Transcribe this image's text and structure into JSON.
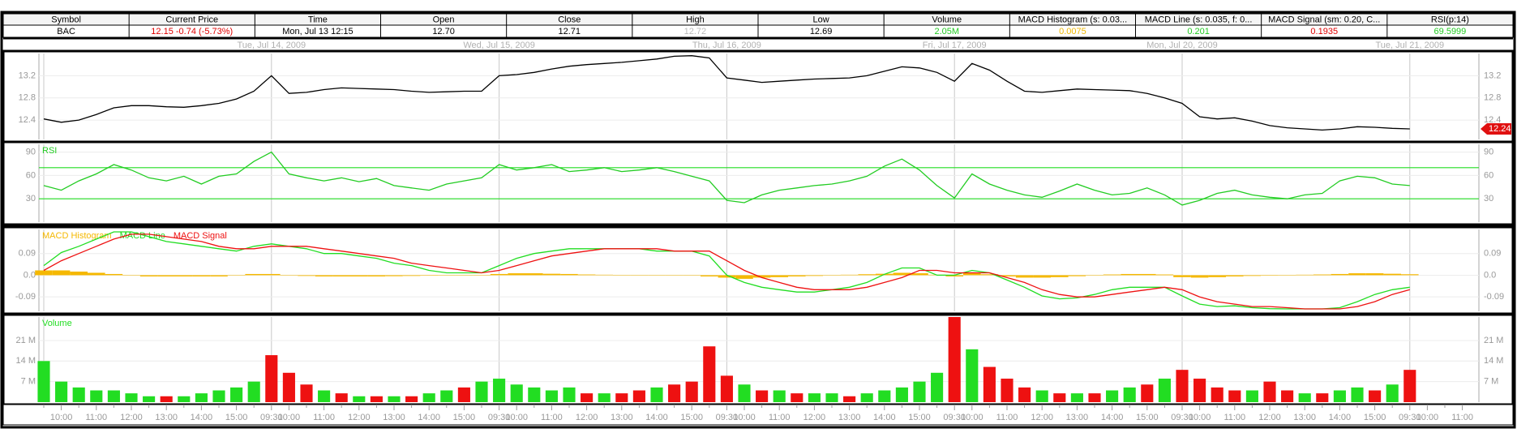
{
  "header_table": {
    "columns": [
      "Symbol",
      "Current Price",
      "Time",
      "Open",
      "Close",
      "High",
      "Low",
      "Volume",
      "MACD Histogram (s: 0.03...",
      "MACD Line (s: 0.035, f: 0...",
      "MACD Signal (sm: 0.20, C...",
      "RSI(p:14)"
    ],
    "cells": [
      {
        "text": "BAC",
        "color": "#000000"
      },
      {
        "text": "12.15  -0.74 (-5.73%)",
        "color": "#e00000"
      },
      {
        "text": "Mon, Jul 13  12:15",
        "color": "#000000"
      },
      {
        "text": "12.70",
        "color": "#000000"
      },
      {
        "text": "12.71",
        "color": "#000000"
      },
      {
        "text": "12.72",
        "color": "#bbbbbb"
      },
      {
        "text": "12.69",
        "color": "#000000"
      },
      {
        "text": "2.05M",
        "color": "#22cc22"
      },
      {
        "text": "0.0075",
        "color": "#f0b800"
      },
      {
        "text": "0.201",
        "color": "#22cc22"
      },
      {
        "text": "0.1935",
        "color": "#e00000"
      },
      {
        "text": "69.5999",
        "color": "#22cc22"
      }
    ]
  },
  "chart_data": [
    {
      "type": "line",
      "day_labels": [
        "Tue, Jul 14, 2009",
        "Wed, Jul 15, 2009",
        "Thu, Jul 16, 2009",
        "Fri, Jul 17, 2009",
        "Mon, Jul 20, 2009",
        "Tue, Jul 21, 2009"
      ],
      "ylim": [
        12.05,
        13.6
      ],
      "yticks": [
        12.4,
        12.8,
        13.2
      ],
      "grid": true,
      "last_price": 12.24,
      "series": [
        {
          "color": "#000000",
          "values": [
            12.42,
            12.36,
            12.4,
            12.5,
            12.62,
            12.66,
            12.66,
            12.64,
            12.63,
            12.66,
            12.7,
            12.78,
            12.92,
            13.2,
            12.88,
            12.9,
            12.95,
            12.98,
            12.97,
            12.96,
            12.95,
            12.92,
            12.9,
            12.91,
            12.92,
            12.92,
            13.2,
            13.22,
            13.26,
            13.32,
            13.37,
            13.4,
            13.42,
            13.44,
            13.47,
            13.5,
            13.55,
            13.56,
            13.52,
            13.16,
            13.12,
            13.08,
            13.1,
            13.12,
            13.14,
            13.15,
            13.16,
            13.2,
            13.28,
            13.36,
            13.34,
            13.26,
            13.1,
            13.42,
            13.3,
            13.1,
            12.92,
            12.9,
            12.93,
            12.96,
            12.95,
            12.94,
            12.93,
            12.88,
            12.8,
            12.7,
            12.46,
            12.42,
            12.44,
            12.38,
            12.3,
            12.26,
            12.24,
            12.22,
            12.24,
            12.28,
            12.27,
            12.25,
            12.24,
            null,
            null,
            null
          ]
        }
      ]
    },
    {
      "type": "line",
      "ylim": [
        0,
        100
      ],
      "yticks": [
        30,
        60,
        90
      ],
      "grid": true,
      "levels": [
        70,
        30
      ],
      "level_color": "#22dd22",
      "series": [
        {
          "name": "RSI",
          "color": "#22cc22",
          "values": [
            47,
            41,
            53,
            62,
            74,
            67,
            57,
            53,
            59,
            49,
            59,
            62,
            78,
            90,
            62,
            57,
            53,
            57,
            52,
            56,
            47,
            44,
            41,
            49,
            53,
            57,
            74,
            67,
            70,
            74,
            65,
            67,
            70,
            65,
            67,
            70,
            65,
            59,
            53,
            28,
            25,
            35,
            41,
            44,
            47,
            49,
            53,
            59,
            72,
            81,
            67,
            47,
            31,
            62,
            49,
            41,
            35,
            32,
            40,
            49,
            41,
            35,
            37,
            44,
            35,
            22,
            28,
            37,
            41,
            35,
            32,
            30,
            35,
            37,
            53,
            59,
            57,
            49,
            47,
            null,
            null,
            null
          ]
        }
      ]
    },
    {
      "type": "combo",
      "ylim": [
        -0.15,
        0.19
      ],
      "yticks": [
        -0.09,
        {
          "value": 0,
          "label": "0.0"
        },
        0.09
      ],
      "grid": true,
      "series": [
        {
          "name": "MACD Histogram",
          "type": "bar",
          "color": "#f5b800",
          "values": [
            0.02,
            0.02,
            0.015,
            0.01,
            0.005,
            0,
            -0.005,
            -0.005,
            -0.005,
            -0.005,
            -0.005,
            0,
            0.005,
            0.005,
            0,
            -0.003,
            -0.005,
            -0.005,
            -0.005,
            -0.005,
            -0.004,
            -0.003,
            -0.002,
            0,
            0,
            0,
            0.005,
            0.008,
            0.008,
            0.006,
            0.005,
            0.003,
            0.002,
            0,
            0,
            0,
            0,
            0,
            -0.005,
            -0.01,
            -0.015,
            -0.01,
            -0.008,
            -0.005,
            -0.003,
            0,
            0.002,
            0.004,
            0.006,
            0.01,
            0.008,
            0.002,
            -0.005,
            0.008,
            0.004,
            -0.005,
            -0.01,
            -0.01,
            -0.008,
            -0.004,
            0,
            0.003,
            0.005,
            0.005,
            0.003,
            -0.008,
            -0.01,
            -0.008,
            -0.005,
            -0.003,
            -0.002,
            0,
            0.002,
            0.003,
            0.005,
            0.008,
            0.008,
            0.006,
            0.004,
            null,
            null,
            null
          ]
        },
        {
          "name": "MACD Line",
          "type": "line",
          "color": "#22dd22",
          "values": [
            0.04,
            0.094,
            0.12,
            0.15,
            0.18,
            0.18,
            0.16,
            0.14,
            0.13,
            0.12,
            0.11,
            0.1,
            0.12,
            0.13,
            0.12,
            0.11,
            0.09,
            0.09,
            0.08,
            0.07,
            0.05,
            0.04,
            0.02,
            0.01,
            0.01,
            0.01,
            0.04,
            0.07,
            0.09,
            0.1,
            0.11,
            0.11,
            0.11,
            0.11,
            0.11,
            0.1,
            0.1,
            0.1,
            0.08,
            0,
            -0.03,
            -0.05,
            -0.06,
            -0.07,
            -0.07,
            -0.06,
            -0.05,
            -0.03,
            0.004,
            0.03,
            0.03,
            0,
            0,
            0.02,
            0.01,
            -0.02,
            -0.05,
            -0.086,
            -0.098,
            -0.094,
            -0.08,
            -0.06,
            -0.05,
            -0.05,
            -0.05,
            -0.086,
            -0.12,
            -0.13,
            -0.127,
            -0.135,
            -0.139,
            -0.14,
            -0.14,
            -0.14,
            -0.135,
            -0.11,
            -0.08,
            -0.06,
            -0.05,
            null,
            null,
            null
          ]
        },
        {
          "name": "MACD Signal",
          "type": "line",
          "color": "#ee1111",
          "values": [
            0.02,
            0.06,
            0.09,
            0.12,
            0.15,
            0.17,
            0.17,
            0.16,
            0.15,
            0.14,
            0.12,
            0.11,
            0.11,
            0.12,
            0.12,
            0.12,
            0.11,
            0.1,
            0.09,
            0.08,
            0.07,
            0.05,
            0.04,
            0.03,
            0.02,
            0.01,
            0.02,
            0.04,
            0.06,
            0.08,
            0.09,
            0.1,
            0.11,
            0.11,
            0.11,
            0.11,
            0.1,
            0.1,
            0.1,
            0.06,
            0.02,
            -0.01,
            -0.03,
            -0.05,
            -0.06,
            -0.06,
            -0.06,
            -0.05,
            -0.03,
            -0.01,
            0.02,
            0.02,
            0.01,
            0.01,
            0.01,
            -0.01,
            -0.03,
            -0.06,
            -0.08,
            -0.09,
            -0.09,
            -0.08,
            -0.07,
            -0.06,
            -0.05,
            -0.06,
            -0.09,
            -0.11,
            -0.12,
            -0.13,
            -0.13,
            -0.135,
            -0.14,
            -0.14,
            -0.14,
            -0.13,
            -0.11,
            -0.08,
            -0.06,
            null,
            null,
            null
          ]
        }
      ]
    },
    {
      "type": "bar",
      "ylim": [
        0,
        29
      ],
      "yticks": [
        {
          "value": 7,
          "label": "7 M"
        },
        {
          "value": 14,
          "label": "14 M"
        },
        {
          "value": 21,
          "label": "21 M"
        }
      ],
      "grid": true,
      "categories": [
        null,
        "10:00",
        null,
        "11:00",
        null,
        "12:00",
        null,
        "13:00",
        null,
        "14:00",
        null,
        "15:00",
        null,
        "09:30",
        "10:00",
        null,
        "11:00",
        null,
        "12:00",
        null,
        "13:00",
        null,
        "14:00",
        null,
        "15:00",
        null,
        "09:30",
        "10:00",
        null,
        "11:00",
        null,
        "12:00",
        null,
        "13:00",
        null,
        "14:00",
        null,
        "15:00",
        null,
        "09:30",
        "10:00",
        null,
        "11:00",
        null,
        "12:00",
        null,
        "13:00",
        null,
        "14:00",
        null,
        "15:00",
        null,
        "09:30",
        "10:00",
        null,
        "11:00",
        null,
        "12:00",
        null,
        "13:00",
        null,
        "14:00",
        null,
        "15:00",
        null,
        "09:30",
        "10:00",
        null,
        "11:00",
        null,
        "12:00",
        null,
        "13:00",
        null,
        "14:00",
        null,
        "15:00",
        null,
        "09:30",
        "10:00",
        null,
        "11:00"
      ],
      "series": [
        {
          "name": "Volume",
          "color": "#22dd22",
          "values": [
            14,
            7,
            5,
            4,
            4,
            3,
            2,
            2,
            2,
            3,
            4,
            5,
            7,
            16,
            10,
            6,
            4,
            3,
            2,
            2,
            2,
            2,
            3,
            4,
            5,
            7,
            8,
            6,
            5,
            4,
            5,
            3,
            3,
            3,
            4,
            5,
            6,
            7,
            19,
            9,
            6,
            4,
            4,
            3,
            3,
            3,
            2,
            3,
            4,
            5,
            7,
            10,
            29,
            18,
            12,
            8,
            5,
            4,
            3,
            3,
            3,
            4,
            5,
            6,
            8,
            11,
            8,
            5,
            4,
            4,
            7,
            4,
            3,
            3,
            4,
            5,
            4,
            6,
            11,
            null,
            null,
            null
          ],
          "colors": [
            "#22dd22",
            "#22dd22",
            "#22dd22",
            "#22dd22",
            "#22dd22",
            "#22dd22",
            "#22dd22",
            "#ee1111",
            "#22dd22",
            "#22dd22",
            "#22dd22",
            "#22dd22",
            "#22dd22",
            "#ee1111",
            "#ee1111",
            "#ee1111",
            "#22dd22",
            "#ee1111",
            "#22dd22",
            "#ee1111",
            "#22dd22",
            "#ee1111",
            "#22dd22",
            "#22dd22",
            "#ee1111",
            "#22dd22",
            "#22dd22",
            "#22dd22",
            "#22dd22",
            "#22dd22",
            "#22dd22",
            "#ee1111",
            "#22dd22",
            "#ee1111",
            "#ee1111",
            "#22dd22",
            "#ee1111",
            "#ee1111",
            "#ee1111",
            "#ee1111",
            "#22dd22",
            "#ee1111",
            "#22dd22",
            "#ee1111",
            "#22dd22",
            "#22dd22",
            "#ee1111",
            "#22dd22",
            "#22dd22",
            "#22dd22",
            "#22dd22",
            "#22dd22",
            "#ee1111",
            "#22dd22",
            "#ee1111",
            "#ee1111",
            "#ee1111",
            "#22dd22",
            "#ee1111",
            "#22dd22",
            "#ee1111",
            "#22dd22",
            "#22dd22",
            "#ee1111",
            "#22dd22",
            "#ee1111",
            "#ee1111",
            "#ee1111",
            "#ee1111",
            "#22dd22",
            "#ee1111",
            "#ee1111",
            "#22dd22",
            "#ee1111",
            "#22dd22",
            "#22dd22",
            "#ee1111",
            "#22dd22",
            "#ee1111",
            null,
            null,
            null
          ]
        }
      ]
    }
  ]
}
